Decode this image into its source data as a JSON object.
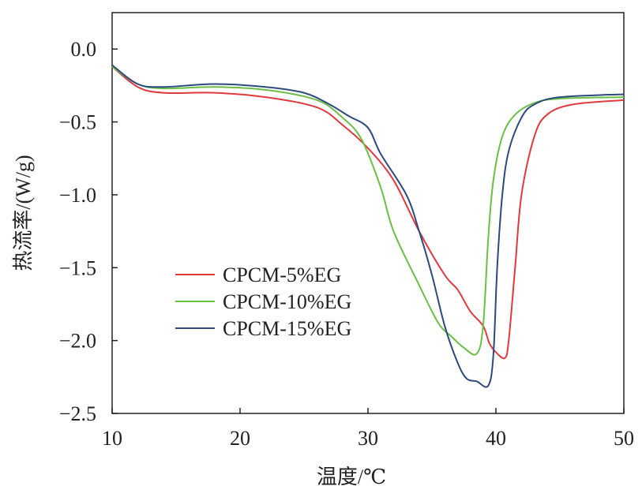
{
  "chart_data": {
    "type": "line",
    "title": "",
    "xlabel": "温度/℃",
    "ylabel": "热流率/(W/g)",
    "xlim": [
      10,
      50
    ],
    "ylim": [
      -2.5,
      0.25
    ],
    "xticks": [
      10,
      20,
      30,
      40,
      50
    ],
    "xtick_labels": [
      "10",
      "20",
      "30",
      "40",
      "50"
    ],
    "yticks": [
      0.0,
      -0.5,
      -1.0,
      -1.5,
      -2.0,
      -2.5
    ],
    "ytick_labels": [
      "0.0",
      "−0.5",
      "−1.0",
      "−1.5",
      "−2.0",
      "−2.5"
    ],
    "grid": false,
    "legend_position": "lower-left",
    "series": [
      {
        "name": "CPCM-5%EG",
        "color": "#e0393e",
        "x": [
          10,
          12,
          14,
          18,
          22,
          26,
          28,
          30,
          32,
          34,
          36,
          37,
          38,
          39,
          39.5,
          40,
          40.7,
          41,
          41.5,
          42,
          43,
          44,
          46,
          50
        ],
        "y": [
          -0.12,
          -0.26,
          -0.3,
          -0.3,
          -0.33,
          -0.4,
          -0.52,
          -0.68,
          -0.9,
          -1.25,
          -1.55,
          -1.65,
          -1.8,
          -1.9,
          -2.02,
          -2.08,
          -2.12,
          -2.0,
          -1.5,
          -1.0,
          -0.6,
          -0.45,
          -0.38,
          -0.35
        ]
      },
      {
        "name": "CPCM-10%EG",
        "color": "#6cbf45",
        "x": [
          10,
          12,
          14,
          18,
          22,
          26,
          28,
          29.5,
          31,
          32,
          34,
          35.5,
          36.5,
          37.5,
          38.5,
          39,
          39.4,
          39.8,
          40.5,
          41.5,
          43,
          45,
          50
        ],
        "y": [
          -0.12,
          -0.24,
          -0.27,
          -0.26,
          -0.28,
          -0.35,
          -0.47,
          -0.62,
          -0.95,
          -1.25,
          -1.62,
          -1.88,
          -1.97,
          -2.05,
          -2.09,
          -1.9,
          -1.3,
          -0.9,
          -0.6,
          -0.45,
          -0.37,
          -0.34,
          -0.33
        ]
      },
      {
        "name": "CPCM-15%EG",
        "color": "#2b4a7e",
        "x": [
          10,
          12,
          14,
          18,
          22,
          25,
          27,
          28.5,
          30,
          31,
          33,
          34,
          35,
          36,
          37,
          37.7,
          38.5,
          39.4,
          39.8,
          40.1,
          40.5,
          41,
          42,
          43,
          45,
          50
        ],
        "y": [
          -0.11,
          -0.24,
          -0.26,
          -0.24,
          -0.26,
          -0.3,
          -0.38,
          -0.46,
          -0.54,
          -0.72,
          -1.0,
          -1.25,
          -1.55,
          -1.9,
          -2.15,
          -2.26,
          -2.28,
          -2.31,
          -2.1,
          -1.5,
          -1.0,
          -0.7,
          -0.47,
          -0.38,
          -0.33,
          -0.31
        ]
      }
    ]
  }
}
